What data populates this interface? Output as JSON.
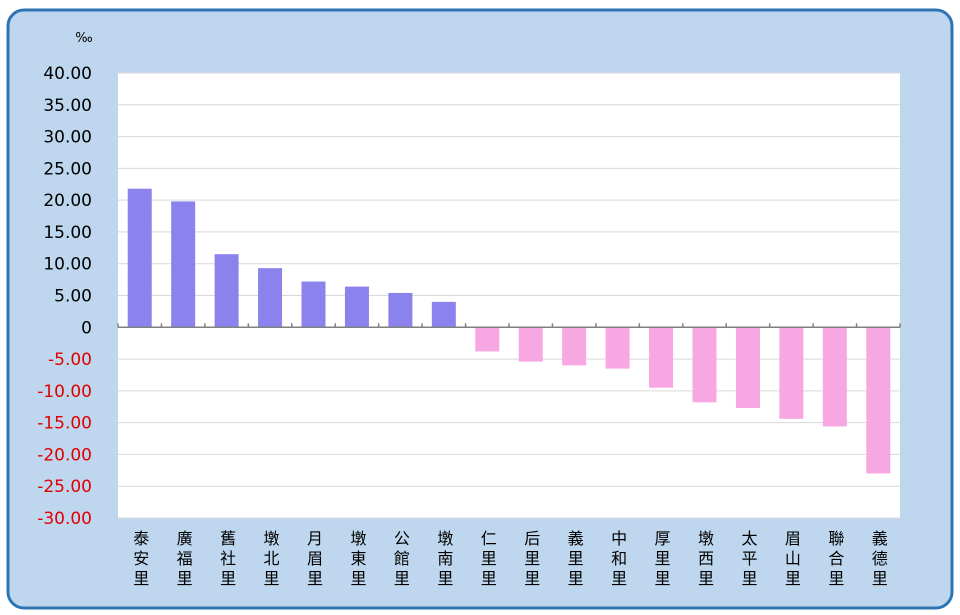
{
  "chart_data": {
    "type": "bar",
    "unit_label": "‰",
    "categories": [
      "泰安里",
      "廣福里",
      "舊社里",
      "墩北里",
      "月眉里",
      "墩東里",
      "公館里",
      "墩南里",
      "仁里里",
      "后里里",
      "義里里",
      "中和里",
      "厚里里",
      "墩西里",
      "太平里",
      "眉山里",
      "聯合里",
      "義德里"
    ],
    "values": [
      21.8,
      19.8,
      11.5,
      9.3,
      7.2,
      6.4,
      5.4,
      4.0,
      -3.8,
      -5.4,
      -6.0,
      -6.5,
      -9.5,
      -11.8,
      -12.7,
      -14.4,
      -15.6,
      -23.0
    ],
    "positive_color": "#8b82ee",
    "negative_color": "#f7a8e2",
    "negative_tick_color": "#e00000",
    "ylim": [
      -30,
      40
    ],
    "yticks": [
      {
        "value": 40,
        "label": "40.00"
      },
      {
        "value": 35,
        "label": "35.00"
      },
      {
        "value": 30,
        "label": "30.00"
      },
      {
        "value": 25,
        "label": "25.00"
      },
      {
        "value": 20,
        "label": "20.00"
      },
      {
        "value": 15,
        "label": "15.00"
      },
      {
        "value": 10,
        "label": "10.00"
      },
      {
        "value": 5,
        "label": "5.00"
      },
      0,
      {
        "value": -5,
        "label": "-5.00"
      },
      {
        "value": -10,
        "label": "-10.00"
      },
      {
        "value": -15,
        "label": "-15.00"
      },
      {
        "value": -20,
        "label": "-20.00"
      },
      {
        "value": -25,
        "label": "-25.00"
      },
      {
        "value": -30,
        "label": "-30.00"
      }
    ],
    "grid": true
  }
}
